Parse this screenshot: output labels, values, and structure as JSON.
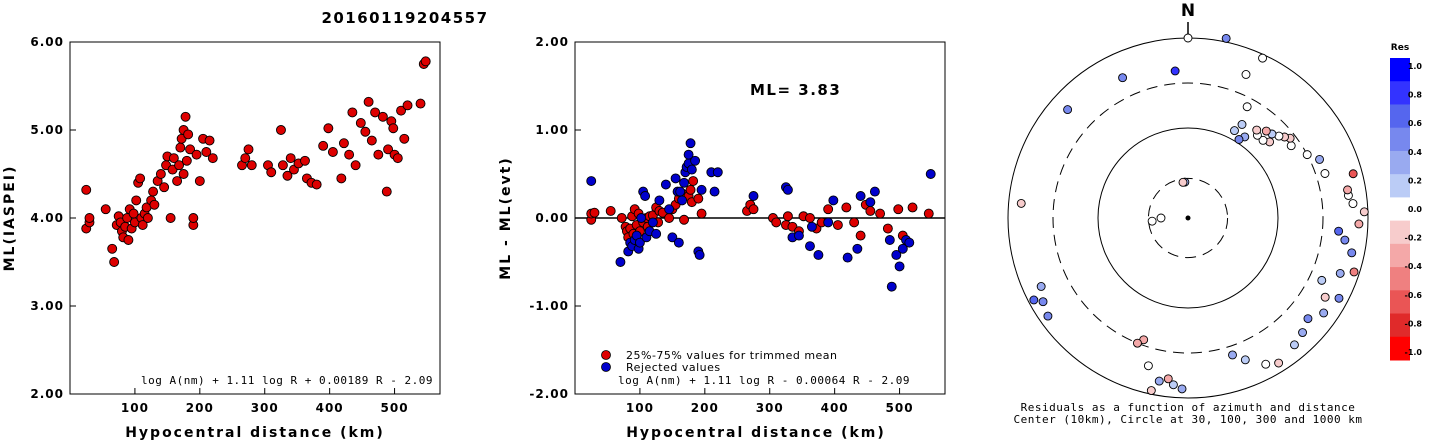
{
  "title": "20160119204557",
  "chart_data": [
    {
      "type": "scatter",
      "title": "",
      "xlabel": "Hypocentral distance (km)",
      "ylabel": "ML(IASPEI)",
      "xlim": [
        0,
        570
      ],
      "ylim": [
        2.0,
        6.0
      ],
      "x_ticks": [
        "100",
        "200",
        "300",
        "400",
        "500"
      ],
      "y_ticks": [
        "2.00",
        "3.00",
        "4.00",
        "5.00",
        "6.00"
      ],
      "formula": "log A(nm) + 1.11 log R + 0.00189 R - 2.09",
      "color": "#dd0000",
      "points": [
        [
          25,
          4.32
        ],
        [
          25,
          3.88
        ],
        [
          30,
          3.95
        ],
        [
          30,
          4.0
        ],
        [
          55,
          4.1
        ],
        [
          65,
          3.65
        ],
        [
          68,
          3.5
        ],
        [
          72,
          3.92
        ],
        [
          75,
          4.02
        ],
        [
          78,
          3.95
        ],
        [
          80,
          3.85
        ],
        [
          82,
          3.78
        ],
        [
          85,
          3.9
        ],
        [
          88,
          4.0
        ],
        [
          90,
          3.75
        ],
        [
          92,
          4.1
        ],
        [
          95,
          3.88
        ],
        [
          98,
          4.05
        ],
        [
          100,
          3.95
        ],
        [
          102,
          4.2
        ],
        [
          105,
          4.4
        ],
        [
          108,
          4.45
        ],
        [
          110,
          4.0
        ],
        [
          112,
          3.92
        ],
        [
          115,
          4.05
        ],
        [
          118,
          4.12
        ],
        [
          120,
          4.0
        ],
        [
          125,
          4.2
        ],
        [
          128,
          4.3
        ],
        [
          130,
          4.15
        ],
        [
          135,
          4.42
        ],
        [
          140,
          4.5
        ],
        [
          145,
          4.35
        ],
        [
          148,
          4.6
        ],
        [
          150,
          4.7
        ],
        [
          155,
          4.0
        ],
        [
          158,
          4.55
        ],
        [
          160,
          4.68
        ],
        [
          165,
          4.42
        ],
        [
          168,
          4.6
        ],
        [
          170,
          4.8
        ],
        [
          172,
          4.9
        ],
        [
          175,
          5.0
        ],
        [
          175,
          4.5
        ],
        [
          178,
          5.15
        ],
        [
          180,
          4.65
        ],
        [
          182,
          4.95
        ],
        [
          185,
          4.78
        ],
        [
          190,
          3.92
        ],
        [
          190,
          4.0
        ],
        [
          195,
          4.72
        ],
        [
          200,
          4.42
        ],
        [
          205,
          4.9
        ],
        [
          210,
          4.75
        ],
        [
          215,
          4.88
        ],
        [
          220,
          4.68
        ],
        [
          265,
          4.6
        ],
        [
          270,
          4.68
        ],
        [
          275,
          4.78
        ],
        [
          280,
          4.6
        ],
        [
          305,
          4.6
        ],
        [
          310,
          4.52
        ],
        [
          325,
          5.0
        ],
        [
          328,
          4.6
        ],
        [
          335,
          4.48
        ],
        [
          340,
          4.68
        ],
        [
          345,
          4.55
        ],
        [
          352,
          4.62
        ],
        [
          362,
          4.65
        ],
        [
          365,
          4.45
        ],
        [
          372,
          4.4
        ],
        [
          380,
          4.38
        ],
        [
          390,
          4.82
        ],
        [
          398,
          5.02
        ],
        [
          405,
          4.75
        ],
        [
          418,
          4.45
        ],
        [
          422,
          4.85
        ],
        [
          430,
          4.72
        ],
        [
          435,
          5.2
        ],
        [
          440,
          4.6
        ],
        [
          448,
          5.08
        ],
        [
          455,
          4.98
        ],
        [
          460,
          5.32
        ],
        [
          465,
          4.88
        ],
        [
          470,
          5.2
        ],
        [
          475,
          4.72
        ],
        [
          482,
          5.15
        ],
        [
          488,
          4.3
        ],
        [
          490,
          4.78
        ],
        [
          495,
          5.1
        ],
        [
          498,
          5.02
        ],
        [
          500,
          4.72
        ],
        [
          505,
          4.68
        ],
        [
          510,
          5.22
        ],
        [
          515,
          4.9
        ],
        [
          520,
          5.28
        ],
        [
          540,
          5.3
        ],
        [
          545,
          5.75
        ],
        [
          548,
          5.78
        ]
      ]
    },
    {
      "type": "scatter",
      "title": "",
      "xlabel": "Hypocentral distance (km)",
      "ylabel": "ML - ML(evt)",
      "xlim": [
        0,
        570
      ],
      "ylim": [
        -2.0,
        2.0
      ],
      "x_ticks": [
        "100",
        "200",
        "300",
        "400",
        "500"
      ],
      "y_ticks": [
        "-2.00",
        "-1.00",
        "0.00",
        "1.00",
        "2.00"
      ],
      "ml_text": "ML= 3.83",
      "legend": [
        "25%-75% values for trimmed mean",
        "Rejected values"
      ],
      "formula": "log A(nm) + 1.11 log R - 0.00064 R - 2.09",
      "colors": {
        "kept": "#dd0000",
        "rejected": "#0000cc"
      },
      "kept": [
        [
          25,
          -0.02
        ],
        [
          25,
          0.05
        ],
        [
          30,
          0.06
        ],
        [
          55,
          0.08
        ],
        [
          72,
          0.0
        ],
        [
          78,
          -0.1
        ],
        [
          80,
          -0.15
        ],
        [
          82,
          -0.22
        ],
        [
          85,
          -0.12
        ],
        [
          88,
          0.02
        ],
        [
          90,
          -0.18
        ],
        [
          92,
          0.1
        ],
        [
          95,
          -0.08
        ],
        [
          98,
          0.05
        ],
        [
          100,
          -0.15
        ],
        [
          105,
          -0.05
        ],
        [
          110,
          0.0
        ],
        [
          112,
          -0.1
        ],
        [
          115,
          0.02
        ],
        [
          120,
          0.03
        ],
        [
          125,
          0.12
        ],
        [
          128,
          -0.05
        ],
        [
          130,
          0.08
        ],
        [
          135,
          0.06
        ],
        [
          145,
          0.0
        ],
        [
          150,
          0.1
        ],
        [
          155,
          0.15
        ],
        [
          160,
          0.22
        ],
        [
          165,
          0.28
        ],
        [
          168,
          -0.02
        ],
        [
          175,
          0.25
        ],
        [
          178,
          0.32
        ],
        [
          180,
          0.18
        ],
        [
          182,
          0.42
        ],
        [
          190,
          0.22
        ],
        [
          195,
          0.05
        ],
        [
          265,
          0.08
        ],
        [
          270,
          0.15
        ],
        [
          275,
          0.1
        ],
        [
          305,
          0.0
        ],
        [
          310,
          -0.05
        ],
        [
          325,
          -0.08
        ],
        [
          328,
          0.02
        ],
        [
          335,
          -0.1
        ],
        [
          345,
          -0.15
        ],
        [
          352,
          0.02
        ],
        [
          362,
          0.0
        ],
        [
          372,
          -0.12
        ],
        [
          380,
          -0.05
        ],
        [
          390,
          0.1
        ],
        [
          405,
          -0.08
        ],
        [
          418,
          0.12
        ],
        [
          430,
          -0.05
        ],
        [
          440,
          -0.2
        ],
        [
          448,
          0.15
        ],
        [
          455,
          0.08
        ],
        [
          470,
          0.05
        ],
        [
          482,
          -0.12
        ],
        [
          498,
          0.1
        ],
        [
          505,
          -0.2
        ],
        [
          520,
          0.12
        ],
        [
          545,
          0.05
        ]
      ],
      "rejected": [
        [
          25,
          0.42
        ],
        [
          70,
          -0.5
        ],
        [
          82,
          -0.38
        ],
        [
          85,
          -0.28
        ],
        [
          88,
          -0.32
        ],
        [
          92,
          -0.25
        ],
        [
          95,
          -0.2
        ],
        [
          98,
          -0.35
        ],
        [
          100,
          -0.28
        ],
        [
          102,
          0.0
        ],
        [
          105,
          0.3
        ],
        [
          108,
          0.25
        ],
        [
          110,
          -0.22
        ],
        [
          115,
          -0.15
        ],
        [
          120,
          -0.05
        ],
        [
          125,
          -0.18
        ],
        [
          130,
          0.2
        ],
        [
          140,
          0.38
        ],
        [
          145,
          0.1
        ],
        [
          150,
          -0.22
        ],
        [
          155,
          0.45
        ],
        [
          158,
          0.3
        ],
        [
          160,
          -0.28
        ],
        [
          162,
          0.3
        ],
        [
          165,
          0.2
        ],
        [
          168,
          0.4
        ],
        [
          170,
          0.52
        ],
        [
          172,
          0.58
        ],
        [
          175,
          0.62
        ],
        [
          175,
          0.72
        ],
        [
          178,
          0.85
        ],
        [
          180,
          0.55
        ],
        [
          185,
          0.65
        ],
        [
          190,
          -0.38
        ],
        [
          192,
          -0.42
        ],
        [
          195,
          0.32
        ],
        [
          210,
          0.52
        ],
        [
          215,
          0.3
        ],
        [
          220,
          0.52
        ],
        [
          275,
          0.25
        ],
        [
          325,
          0.35
        ],
        [
          328,
          0.32
        ],
        [
          335,
          -0.22
        ],
        [
          345,
          -0.2
        ],
        [
          362,
          -0.32
        ],
        [
          365,
          -0.1
        ],
        [
          375,
          -0.42
        ],
        [
          390,
          -0.05
        ],
        [
          398,
          0.2
        ],
        [
          420,
          -0.45
        ],
        [
          435,
          -0.35
        ],
        [
          440,
          0.25
        ],
        [
          455,
          0.18
        ],
        [
          462,
          0.3
        ],
        [
          485,
          -0.25
        ],
        [
          488,
          -0.78
        ],
        [
          495,
          -0.42
        ],
        [
          500,
          -0.55
        ],
        [
          505,
          -0.35
        ],
        [
          510,
          -0.25
        ],
        [
          515,
          -0.28
        ],
        [
          548,
          0.5
        ]
      ]
    },
    {
      "type": "scatter",
      "subtype": "polar",
      "north_label": "N",
      "caption": [
        "Residuals as a function of azimuth and distance",
        "Center (10km), Circle at 30, 100, 300 and 1000 km"
      ],
      "colorbar": {
        "title": "Res",
        "range": [
          -1.0,
          1.0
        ],
        "labels": [
          "1.0",
          "0.8",
          "0.6",
          "0.4",
          "0.2",
          "0.0",
          "-0.2",
          "-0.4",
          "-0.6",
          "-0.8",
          "-1.0"
        ],
        "colors": [
          "#0000ff",
          "#3333ff",
          "#5566ee",
          "#7788ee",
          "#99aaf0",
          "#bbccf6",
          "#ffffff",
          "#f7cccc",
          "#f4a8a8",
          "#ef8080",
          "#ea5555",
          "#e02a2a",
          "#ff0000"
        ]
      },
      "rings_km": [
        30,
        100,
        300,
        1000
      ],
      "points": [
        [
          0,
          1.0,
          0.0
        ],
        [
          12,
          1.02,
          0.45
        ],
        [
          25,
          0.98,
          -0.05
        ],
        [
          22,
          0.86,
          0.0
        ],
        [
          -5,
          0.82,
          0.8
        ],
        [
          -25,
          0.86,
          0.55
        ],
        [
          -48,
          0.9,
          0.55
        ],
        [
          -85,
          0.93,
          -0.2
        ],
        [
          -120,
          0.93,
          0.5
        ],
        [
          -125,
          0.95,
          0.55
        ],
        [
          -118,
          0.97,
          0.6
        ],
        [
          -115,
          0.9,
          0.4
        ],
        [
          -160,
          0.72,
          -0.4
        ],
        [
          -158,
          0.75,
          -0.4
        ],
        [
          -165,
          0.85,
          0.0
        ],
        [
          -170,
          0.92,
          0.3
        ],
        [
          -178,
          0.95,
          0.3
        ],
        [
          -175,
          0.93,
          0.25
        ],
        [
          -173,
          0.9,
          -0.35
        ],
        [
          -168,
          0.98,
          -0.2
        ],
        [
          162,
          0.8,
          0.3
        ],
        [
          158,
          0.85,
          0.2
        ],
        [
          152,
          0.92,
          0.0
        ],
        [
          148,
          0.95,
          -0.1
        ],
        [
          140,
          0.92,
          0.2
        ],
        [
          135,
          0.9,
          0.35
        ],
        [
          130,
          0.87,
          0.45
        ],
        [
          125,
          0.92,
          0.4
        ],
        [
          120,
          0.88,
          -0.2
        ],
        [
          118,
          0.95,
          0.45
        ],
        [
          115,
          0.82,
          0.2
        ],
        [
          110,
          0.9,
          0.3
        ],
        [
          108,
          0.97,
          -0.5
        ],
        [
          102,
          0.93,
          0.45
        ],
        [
          98,
          0.88,
          0.55
        ],
        [
          95,
          0.84,
          0.6
        ],
        [
          92,
          0.95,
          -0.35
        ],
        [
          85,
          0.92,
          0.0
        ],
        [
          82,
          0.9,
          0.0
        ],
        [
          80,
          0.9,
          -0.3
        ],
        [
          88,
          0.98,
          -0.1
        ],
        [
          75,
          0.95,
          -0.6
        ],
        [
          72,
          0.8,
          0.0
        ],
        [
          66,
          0.8,
          0.3
        ],
        [
          62,
          0.75,
          0.0
        ],
        [
          55,
          0.7,
          0.0
        ],
        [
          52,
          0.72,
          -0.2
        ],
        [
          50,
          0.7,
          -0.1
        ],
        [
          48,
          0.68,
          0.0
        ],
        [
          47,
          0.62,
          -0.1
        ],
        [
          45,
          0.66,
          0.2
        ],
        [
          44,
          0.6,
          0.0
        ],
        [
          42,
          0.65,
          -0.3
        ],
        [
          40,
          0.6,
          0.0
        ],
        [
          38,
          0.62,
          -0.2
        ],
        [
          35,
          0.55,
          0.3
        ],
        [
          33,
          0.52,
          0.5
        ],
        [
          30,
          0.6,
          0.1
        ],
        [
          28,
          0.7,
          0.0
        ],
        [
          28,
          0.55,
          0.2
        ],
        [
          -5,
          0.2,
          0.3
        ],
        [
          -8,
          0.2,
          -0.1
        ],
        [
          -90,
          0.15,
          0.0
        ],
        [
          -95,
          0.2,
          0.0
        ]
      ]
    }
  ]
}
